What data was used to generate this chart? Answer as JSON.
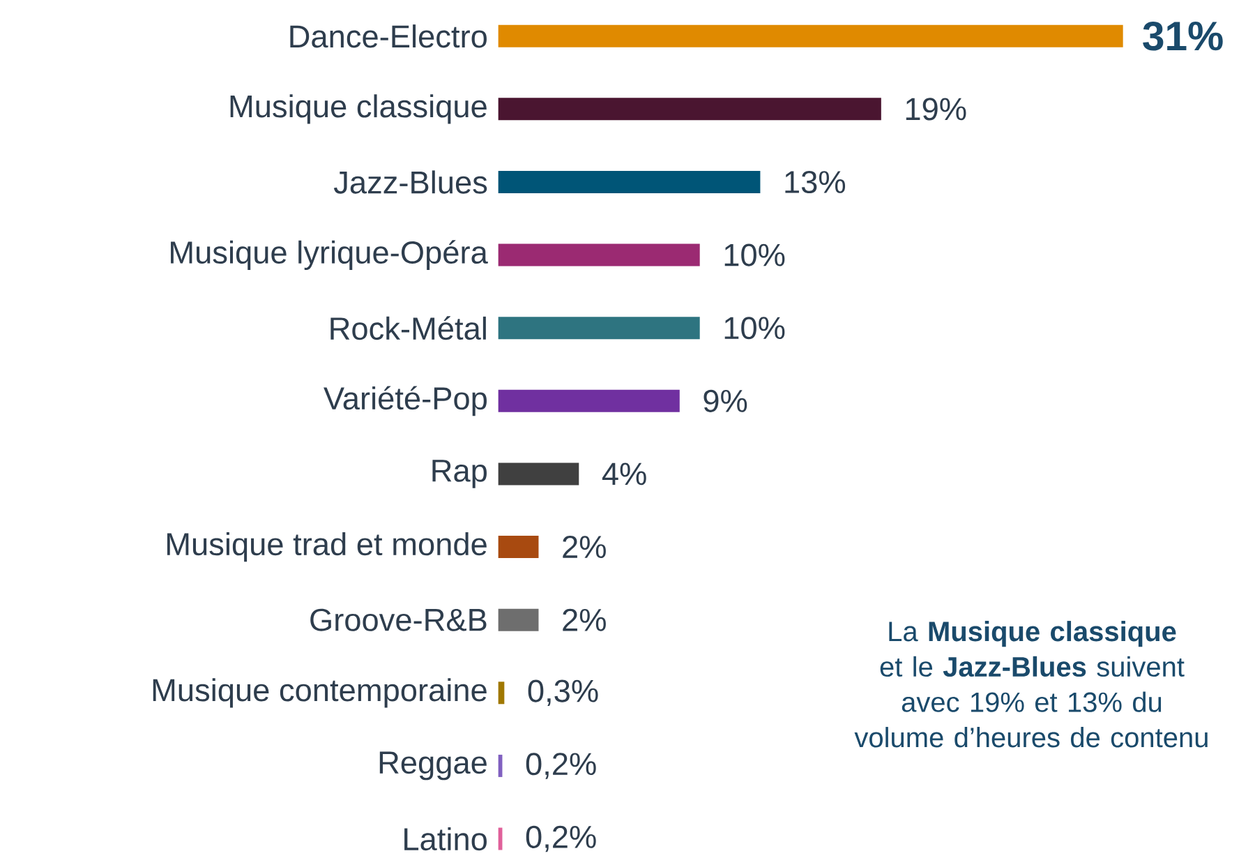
{
  "chart_data": {
    "type": "bar",
    "orientation": "horizontal",
    "categories": [
      "Dance-Electro",
      "Musique classique",
      "Jazz-Blues",
      "Musique lyrique-Opéra",
      "Rock-Métal",
      "Variété-Pop",
      "Rap",
      "Musique trad et monde",
      "Groove-R&B",
      "Musique contemporaine",
      "Reggae",
      "Latino"
    ],
    "values": [
      31,
      19,
      13,
      10,
      10,
      9,
      4,
      2,
      2,
      0.3,
      0.2,
      0.2
    ],
    "colors": [
      "#e08a00",
      "#4a1530",
      "#005577",
      "#9b2a72",
      "#2e7480",
      "#7030a0",
      "#404040",
      "#a84a10",
      "#6e6e6e",
      "#a07800",
      "#8060c0",
      "#e0609a"
    ],
    "value_labels": [
      "**31%**",
      "19%",
      "13%",
      "10%",
      "10%",
      "9%",
      "4%",
      "2%",
      "2%",
      "0,3%",
      "0,2%",
      "0,2%"
    ],
    "annotations": [
      "La **Musique classique** et le **Jazz-Blues** suivent avec 19% et 13% du volume d’heures de contenu"
    ]
  }
}
